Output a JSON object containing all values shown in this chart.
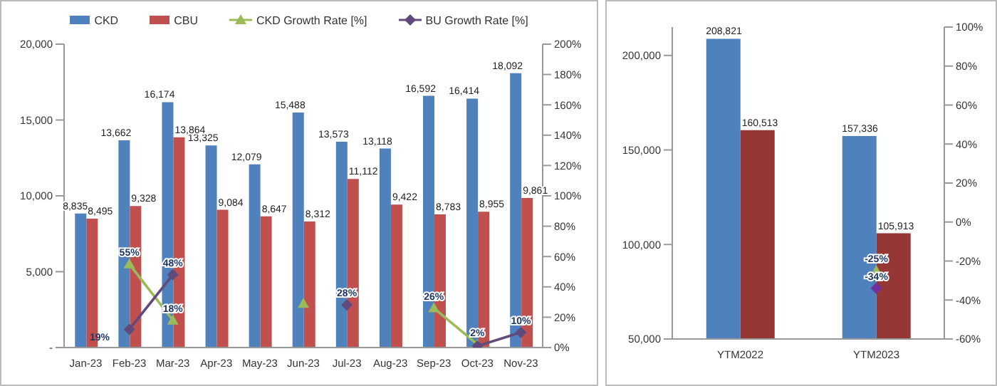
{
  "chart_data": [
    {
      "type": "bar",
      "categories": [
        "Jan-23",
        "Feb-23",
        "Mar-23",
        "Apr-23",
        "May-23",
        "Jun-23",
        "Jul-23",
        "Aug-23",
        "Sep-23",
        "Oct-23",
        "Nov-23"
      ],
      "series": [
        {
          "name": "CKD",
          "color": "#4f81bd",
          "values": [
            8835,
            13662,
            16174,
            13325,
            12079,
            15488,
            13573,
            13118,
            16592,
            16414,
            18092
          ],
          "value_labels": [
            "8,835",
            "13,662",
            "16,174",
            "13,325",
            "12,079",
            "15,488",
            "13,573",
            "13,118",
            "16,592",
            "16,414",
            "18,092"
          ]
        },
        {
          "name": "CBU",
          "color": "#c0504d",
          "values": [
            8495,
            9328,
            13864,
            9084,
            8647,
            8312,
            11112,
            9422,
            8783,
            8955,
            9861
          ],
          "value_labels": [
            "8,495",
            "9,328",
            "13,864",
            "9,084",
            "8,647",
            "8,312",
            "11,112",
            "9,422",
            "8,783",
            "8,955",
            "9,861"
          ]
        },
        {
          "name": "CKD Growth Rate [%]",
          "type": "line",
          "axis": "y2",
          "color": "#9bbb59",
          "marker": "triangle",
          "values": [
            null,
            55,
            18,
            null,
            null,
            29,
            null,
            null,
            26,
            2,
            null
          ],
          "value_labels": [
            null,
            "55%",
            "18%",
            null,
            null,
            null,
            null,
            null,
            "26%",
            "2%",
            null
          ]
        },
        {
          "name": "BU Growth Rate [%]",
          "type": "line",
          "axis": "y2",
          "color": "#604a7b",
          "marker": "diamond",
          "values": [
            null,
            12,
            48,
            null,
            null,
            null,
            28,
            null,
            null,
            1,
            10
          ],
          "value_labels": [
            null,
            null,
            "48%",
            null,
            null,
            null,
            "28%",
            null,
            null,
            null,
            "10%"
          ]
        }
      ],
      "ylim": [
        0,
        20000
      ],
      "yticks": [
        {
          "value": 0,
          "label": "-"
        },
        {
          "value": 5000,
          "label": "5,000"
        },
        {
          "value": 10000,
          "label": "10,000"
        },
        {
          "value": 15000,
          "label": "15,000"
        },
        {
          "value": 20000,
          "label": "20,000"
        }
      ],
      "y2lim": [
        0,
        200
      ],
      "y2ticks": [
        {
          "value": 0,
          "label": "0%"
        },
        {
          "value": 20,
          "label": "20%"
        },
        {
          "value": 40,
          "label": "40%"
        },
        {
          "value": 60,
          "label": "60%"
        },
        {
          "value": 80,
          "label": "80%"
        },
        {
          "value": 100,
          "label": "100%"
        },
        {
          "value": 120,
          "label": "120%"
        },
        {
          "value": 140,
          "label": "140%"
        },
        {
          "value": 160,
          "label": "160%"
        },
        {
          "value": 180,
          "label": "180%"
        },
        {
          "value": 200,
          "label": "200%"
        }
      ],
      "legend": "top",
      "annotations": [
        "19%"
      ]
    },
    {
      "type": "bar",
      "categories": [
        "YTM2022",
        "YTM2023"
      ],
      "series": [
        {
          "color": "#4f81bd",
          "values": [
            208821,
            157336
          ],
          "value_labels": [
            "208,821",
            "157,336"
          ]
        },
        {
          "color": "#953735",
          "values": [
            160513,
            105913
          ],
          "value_labels": [
            "160,513",
            "105,913"
          ]
        },
        {
          "type": "line",
          "axis": "y2",
          "color": "#9bbb59",
          "marker": "triangle",
          "values": [
            null,
            -25
          ],
          "value_labels": [
            null,
            "-25%"
          ]
        },
        {
          "type": "line",
          "axis": "y2",
          "color": "#7030a0",
          "marker": "diamond",
          "values": [
            null,
            -34
          ],
          "value_labels": [
            null,
            "-34%"
          ]
        }
      ],
      "ylim": [
        50000,
        215000
      ],
      "yticks": [
        {
          "value": 50000,
          "label": "50,000"
        },
        {
          "value": 100000,
          "label": "100,000"
        },
        {
          "value": 150000,
          "label": "150,000"
        },
        {
          "value": 200000,
          "label": "200,000"
        }
      ],
      "y2lim": [
        -60,
        100
      ],
      "y2ticks": [
        {
          "value": -60,
          "label": "-60%"
        },
        {
          "value": -40,
          "label": "-40%"
        },
        {
          "value": -20,
          "label": "-20%"
        },
        {
          "value": 0,
          "label": "0%"
        },
        {
          "value": 20,
          "label": "20%"
        },
        {
          "value": 40,
          "label": "40%"
        },
        {
          "value": 60,
          "label": "60%"
        },
        {
          "value": 80,
          "label": "80%"
        },
        {
          "value": 100,
          "label": "100%"
        }
      ]
    }
  ]
}
